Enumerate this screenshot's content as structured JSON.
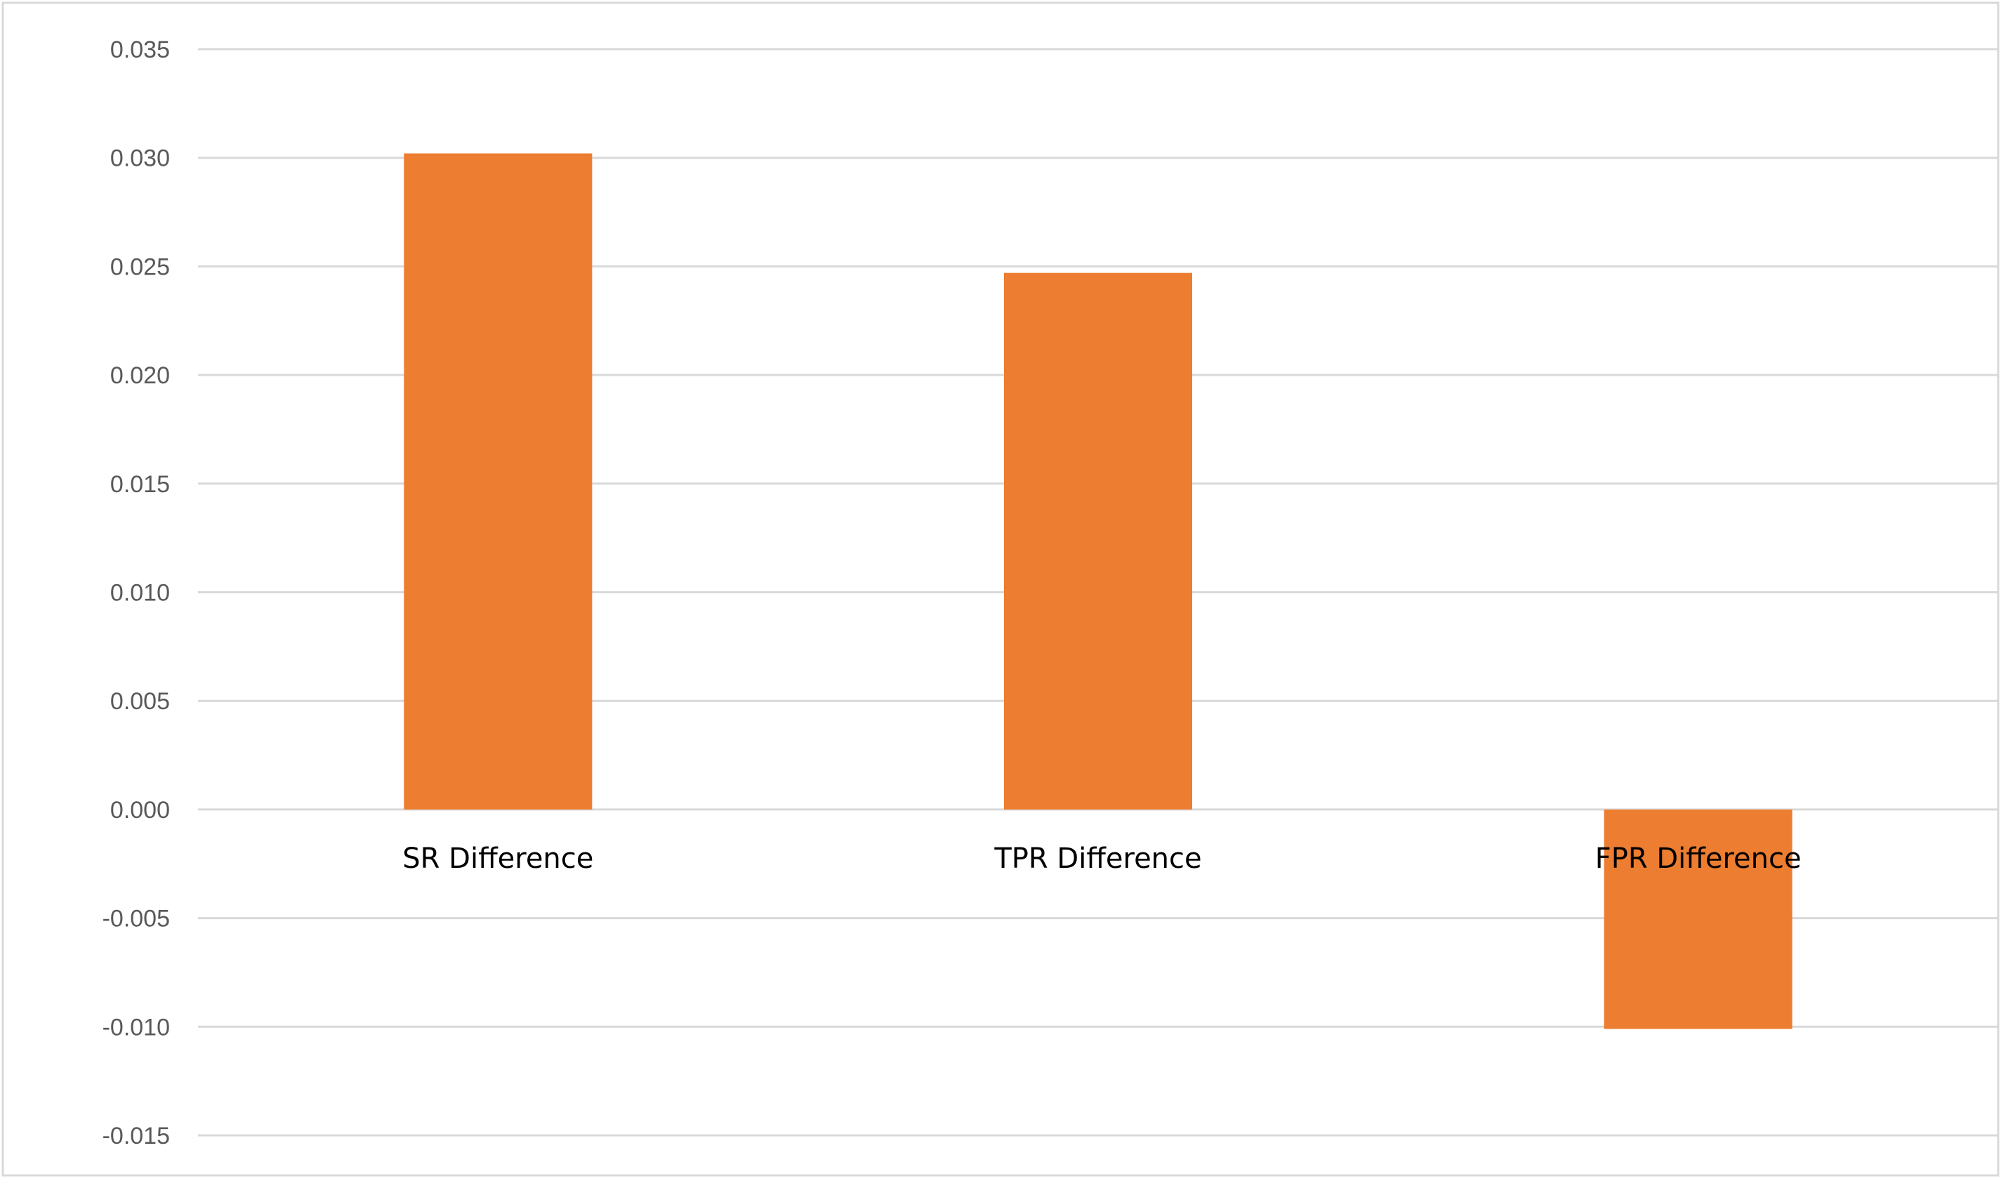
{
  "chart_data": {
    "type": "bar",
    "title": "",
    "xlabel": "",
    "ylabel": "",
    "categories": [
      "SR Difference",
      "TPR Difference",
      "FPR Difference"
    ],
    "series": [
      {
        "values": [
          0.0302,
          0.0247,
          -0.0101
        ],
        "color": "#ED7D31"
      }
    ],
    "ylim": [
      -0.015,
      0.035
    ],
    "yticks": [
      0.035,
      0.03,
      0.025,
      0.02,
      0.015,
      0.01,
      0.005,
      0.0,
      -0.005,
      -0.01,
      -0.015
    ],
    "ytick_labels": [
      "0.035",
      "0.030",
      "0.025",
      "0.020",
      "0.015",
      "0.010",
      "0.005",
      "0.000",
      "-0.005",
      "-0.010",
      "-0.015"
    ],
    "grid": true,
    "legend": "none",
    "colors": {
      "bar": "#ED7D31",
      "grid": "#D9D9D9",
      "border": "#D9D9D9",
      "tick_text": "#595959",
      "category_text": "#000000"
    }
  }
}
